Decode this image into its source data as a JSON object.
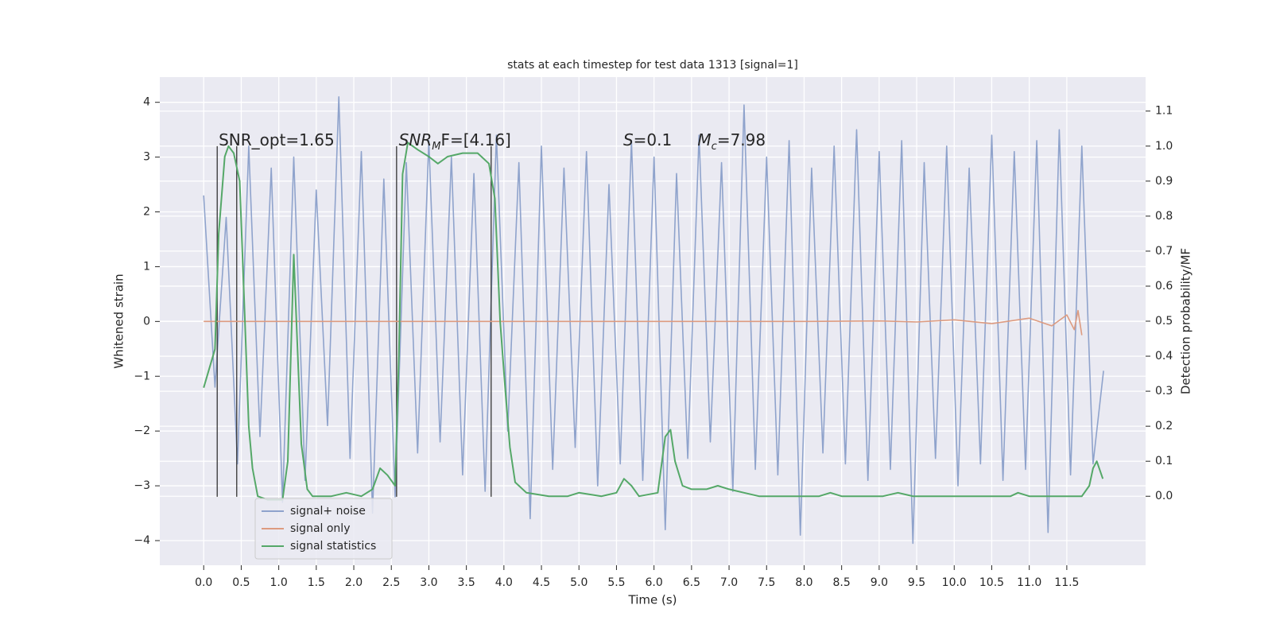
{
  "chart_data": {
    "type": "line",
    "title": "stats at each timestep for test data 1313 [signal=1]",
    "xlabel": "Time (s)",
    "ylabel": "Whitened strain",
    "y2label": "Detection probability/MF",
    "xlim": [
      -0.585,
      12.55
    ],
    "ylim": [
      -4.45,
      4.46
    ],
    "y2lim": [
      -0.197,
      1.197
    ],
    "xticks": [
      {
        "value": 0,
        "label": "0.0"
      },
      0.5,
      {
        "value": 1,
        "label": "1.0"
      },
      1.5,
      {
        "value": 2,
        "label": "2.0"
      },
      2.5,
      {
        "value": 3,
        "label": "3.0"
      },
      3.5,
      {
        "value": 4,
        "label": "4.0"
      },
      4.5,
      {
        "value": 5,
        "label": "5.0"
      },
      5.5,
      {
        "value": 6,
        "label": "6.0"
      },
      6.5,
      {
        "value": 7,
        "label": "7.0"
      },
      7.5,
      {
        "value": 8,
        "label": "8.0"
      },
      8.5,
      {
        "value": 9,
        "label": "9.0"
      },
      9.5,
      {
        "value": 10,
        "label": "10.0"
      },
      10.5,
      {
        "value": 11,
        "label": "11.0"
      },
      11.5
    ],
    "yticks": [
      {
        "value": -4,
        "label": "−4"
      },
      {
        "value": -3,
        "label": "−3"
      },
      {
        "value": -2,
        "label": "−2"
      },
      {
        "value": -1,
        "label": "−1"
      },
      0,
      1,
      2,
      3,
      4
    ],
    "y2ticks": [
      {
        "value": 0,
        "label": "0.0"
      },
      0.1,
      0.2,
      0.3,
      0.4,
      0.5,
      0.6,
      0.7,
      0.8,
      0.9,
      {
        "value": 1,
        "label": "1.0"
      },
      1.1
    ],
    "grid": true,
    "legend": "lower left",
    "series": [
      {
        "name": "signal+ noise",
        "color": "#8fa3cc",
        "x": [
          0,
          0.15,
          0.3,
          0.45,
          0.6,
          0.75,
          0.9,
          1.05,
          1.2,
          1.35,
          1.5,
          1.65,
          1.8,
          1.95,
          2.1,
          2.25,
          2.4,
          2.55,
          2.7,
          2.85,
          3.0,
          3.15,
          3.3,
          3.45,
          3.6,
          3.75,
          3.9,
          4.05,
          4.2,
          4.35,
          4.5,
          4.65,
          4.8,
          4.95,
          5.1,
          5.25,
          5.4,
          5.55,
          5.7,
          5.85,
          6.0,
          6.15,
          6.3,
          6.45,
          6.6,
          6.75,
          6.9,
          7.05,
          7.2,
          7.35,
          7.5,
          7.65,
          7.8,
          7.95,
          8.1,
          8.25,
          8.4,
          8.55,
          8.7,
          8.85,
          9.0,
          9.15,
          9.3,
          9.45,
          9.6,
          9.75,
          9.9,
          10.05,
          10.2,
          10.35,
          10.5,
          10.65,
          10.8,
          10.95,
          11.1,
          11.25,
          11.4,
          11.55,
          11.7,
          11.85,
          11.99
        ],
        "values": [
          2.3,
          -1.2,
          1.9,
          -2.6,
          3.2,
          -2.1,
          2.8,
          -3.3,
          3.0,
          -2.9,
          2.4,
          -1.9,
          4.1,
          -2.5,
          3.1,
          -3.5,
          2.6,
          -3.2,
          2.9,
          -2.4,
          3.3,
          -2.2,
          3.0,
          -2.8,
          2.7,
          -3.1,
          3.4,
          -2.0,
          2.9,
          -3.6,
          3.2,
          -2.7,
          2.8,
          -2.3,
          3.1,
          -3.0,
          2.5,
          -2.6,
          3.3,
          -2.9,
          3.0,
          -3.8,
          2.7,
          -2.5,
          3.4,
          -2.2,
          2.9,
          -3.1,
          3.95,
          -2.7,
          3.0,
          -2.8,
          3.3,
          -3.9,
          2.8,
          -2.4,
          3.2,
          -2.6,
          3.5,
          -2.9,
          3.1,
          -2.7,
          3.3,
          -4.05,
          2.9,
          -2.5,
          3.2,
          -3.0,
          2.8,
          -2.6,
          3.4,
          -2.9,
          3.1,
          -2.7,
          3.3,
          -3.85,
          3.5,
          -2.8,
          3.2,
          -2.6,
          -0.9
        ]
      },
      {
        "name": "signal only",
        "color": "#dd9b80",
        "x": [
          0,
          2,
          4,
          6,
          8,
          9,
          9.5,
          10,
          10.5,
          11,
          11.3,
          11.5,
          11.6,
          11.65,
          11.7
        ],
        "values": [
          0,
          0,
          0,
          0,
          0,
          0.01,
          -0.01,
          0.03,
          -0.04,
          0.06,
          -0.08,
          0.12,
          -0.15,
          0.2,
          -0.25
        ]
      },
      {
        "name": "signal statistics",
        "color": "#55a868",
        "axis": "y2",
        "x": [
          0.0,
          0.15,
          0.2,
          0.28,
          0.33,
          0.4,
          0.48,
          0.55,
          0.6,
          0.65,
          0.72,
          0.85,
          1.05,
          1.12,
          1.2,
          1.3,
          1.38,
          1.45,
          1.7,
          1.9,
          2.1,
          2.25,
          2.35,
          2.45,
          2.55,
          2.6,
          2.65,
          2.72,
          2.85,
          3.0,
          3.12,
          3.25,
          3.45,
          3.65,
          3.8,
          3.88,
          3.95,
          4.02,
          4.08,
          4.15,
          4.3,
          4.6,
          4.85,
          5.0,
          5.3,
          5.5,
          5.6,
          5.7,
          5.8,
          6.05,
          6.15,
          6.22,
          6.28,
          6.38,
          6.5,
          6.7,
          6.85,
          7.0,
          7.2,
          7.4,
          8.2,
          8.35,
          8.5,
          9.05,
          9.25,
          9.45,
          10.3,
          10.75,
          10.85,
          11.0,
          11.7,
          11.8,
          11.85,
          11.9,
          11.98
        ],
        "values": [
          0.31,
          0.42,
          0.75,
          0.97,
          1.0,
          0.98,
          0.9,
          0.5,
          0.2,
          0.08,
          0.0,
          -0.01,
          -0.01,
          0.1,
          0.69,
          0.15,
          0.02,
          0.0,
          0.0,
          0.01,
          0.0,
          0.02,
          0.08,
          0.06,
          0.03,
          0.4,
          0.92,
          1.01,
          0.99,
          0.97,
          0.95,
          0.97,
          0.98,
          0.98,
          0.95,
          0.85,
          0.5,
          0.3,
          0.14,
          0.04,
          0.01,
          0.0,
          0.0,
          0.01,
          0.0,
          0.01,
          0.05,
          0.03,
          0.0,
          0.01,
          0.17,
          0.19,
          0.1,
          0.03,
          0.02,
          0.02,
          0.03,
          0.02,
          0.01,
          0.0,
          0.0,
          0.01,
          0.0,
          0.0,
          0.01,
          0.0,
          0.0,
          0.0,
          0.01,
          0.0,
          0.0,
          0.03,
          0.08,
          0.1,
          0.05
        ]
      }
    ],
    "vlines": {
      "x": [
        0.18,
        0.44,
        2.57,
        3.83
      ],
      "ymin": -3.2,
      "ymax": 3.2,
      "color": "#333333"
    },
    "annotations": [
      {
        "x": 0.2,
        "y": 3.3,
        "parts": [
          {
            "text": "SNR_opt=1.65"
          }
        ]
      },
      {
        "x": 2.6,
        "y": 3.3,
        "parts": [
          {
            "text": "SNR",
            "italic": true
          },
          {
            "text": "M",
            "italic": true,
            "sub": true
          },
          {
            "text": "F=[4.16]"
          }
        ]
      },
      {
        "x": 5.59,
        "y": 3.3,
        "parts": [
          {
            "text": "S",
            "italic": true
          },
          {
            "text": "=0.1"
          }
        ]
      },
      {
        "x": 6.58,
        "y": 3.3,
        "parts": [
          {
            "text": "M",
            "italic": true
          },
          {
            "text": "c",
            "italic": true,
            "sub": true
          },
          {
            "text": "=7.98"
          }
        ]
      }
    ]
  }
}
